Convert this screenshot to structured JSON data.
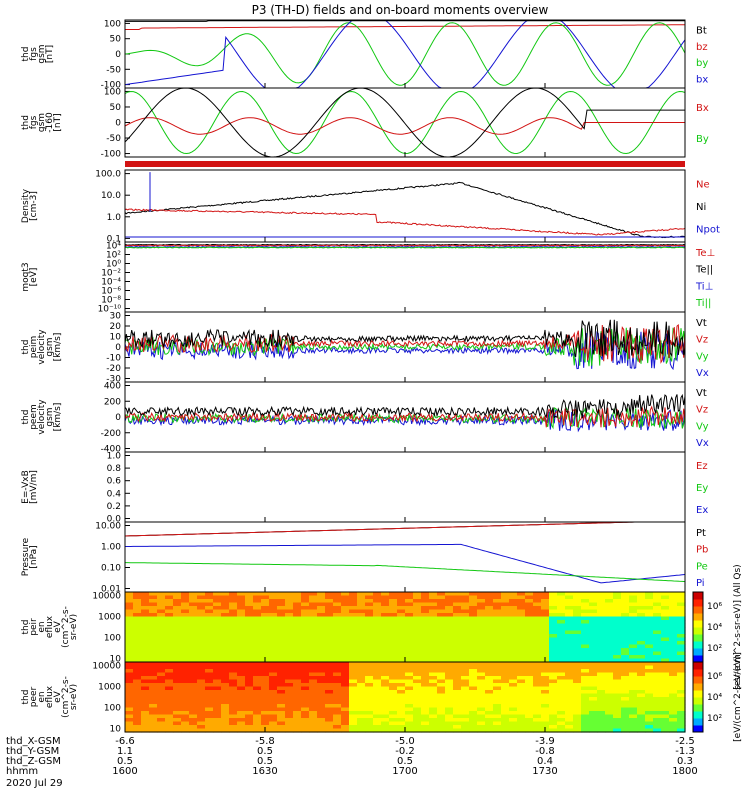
{
  "title": "P3 (TH-D) fields and on-board moments overview",
  "colors": {
    "black": "#000000",
    "red": "#d21414",
    "green": "#12c812",
    "blue": "#1414d2"
  },
  "footer": {
    "row_labels": [
      "thd_X-GSM",
      "thd_Y-GSM",
      "thd_Z-GSM",
      "hhmm",
      "2020 Jul 29"
    ],
    "columns": [
      {
        "x": "-6.6",
        "y": "1.1",
        "z": "0.5",
        "t": "1600"
      },
      {
        "x": "-5.8",
        "y": "0.5",
        "z": "0.5",
        "t": "1630"
      },
      {
        "x": "-5.0",
        "y": "-0.2",
        "z": "0.5",
        "t": "1700"
      },
      {
        "x": "-3.9",
        "y": "-0.8",
        "z": "0.4",
        "t": "1730"
      },
      {
        "x": "-2.5",
        "y": "-1.3",
        "z": "0.3",
        "t": "1800"
      }
    ]
  },
  "chart_data": [
    {
      "type": "line",
      "ylabel": [
        "thd",
        "fgs",
        "gsm",
        "[nT]"
      ],
      "yticks": [
        "100",
        "50",
        "0",
        "-50",
        "-100"
      ],
      "legend": [
        {
          "name": "Bt",
          "color": "black"
        },
        {
          "name": "bz",
          "color": "red"
        },
        {
          "name": "by",
          "color": "green"
        },
        {
          "name": "bx",
          "color": "blue"
        }
      ]
    },
    {
      "type": "line",
      "ylabel": [
        "thd",
        "fgs",
        "gsm",
        "-160",
        "[nT]"
      ],
      "yticks": [
        "100",
        "50",
        "0",
        "-50",
        "-100"
      ],
      "legend": [
        {
          "name": "Bx",
          "color": "red"
        },
        {
          "name": "By",
          "color": "green"
        }
      ]
    },
    {
      "type": "line",
      "ylabel": [
        "Density",
        "[cm-3]"
      ],
      "yticks": [
        "100.0",
        "10.0",
        "1.0",
        "0.1"
      ],
      "legend": [
        {
          "name": "Ne",
          "color": "red"
        },
        {
          "name": "Ni",
          "color": "black"
        },
        {
          "name": "Npot",
          "color": "blue"
        }
      ]
    },
    {
      "type": "line",
      "ylabel": [
        "moqt3",
        "[eV]"
      ],
      "yticks": [
        "10⁴",
        "10²",
        "10⁰",
        "10⁻²",
        "10⁻⁴",
        "10⁻⁶",
        "10⁻⁸",
        "10⁻¹⁰"
      ],
      "legend": [
        {
          "name": "Te⊥",
          "color": "red"
        },
        {
          "name": "Te||",
          "color": "black"
        },
        {
          "name": "Ti⊥",
          "color": "blue"
        },
        {
          "name": "Ti||",
          "color": "green"
        }
      ]
    },
    {
      "type": "line",
      "ylabel": [
        "thd",
        "peim",
        "velocity",
        "gsm",
        "[km/s]"
      ],
      "yticks": [
        "30",
        "20",
        "10",
        "0",
        "-10",
        "-20",
        "-30"
      ],
      "legend": [
        {
          "name": "Vt",
          "color": "black"
        },
        {
          "name": "Vz",
          "color": "red"
        },
        {
          "name": "Vy",
          "color": "green"
        },
        {
          "name": "Vx",
          "color": "blue"
        }
      ]
    },
    {
      "type": "line",
      "ylabel": [
        "thd",
        "peem",
        "velocity",
        "gsm",
        "[km/s]"
      ],
      "yticks": [
        "400",
        "200",
        "0",
        "-200",
        "-400"
      ],
      "legend": [
        {
          "name": "Vt",
          "color": "black"
        },
        {
          "name": "Vz",
          "color": "red"
        },
        {
          "name": "Vy",
          "color": "green"
        },
        {
          "name": "Vx",
          "color": "blue"
        }
      ]
    },
    {
      "type": "line",
      "ylabel": [
        "E=-VxB",
        "[mV/m]"
      ],
      "yticks": [
        "1.0",
        "0.8",
        "0.6",
        "0.4",
        "0.2",
        "0.0"
      ],
      "legend": [
        {
          "name": "Ez",
          "color": "red"
        },
        {
          "name": "Ey",
          "color": "green"
        },
        {
          "name": "Ex",
          "color": "blue"
        }
      ]
    },
    {
      "type": "line",
      "ylabel": [
        "Pressure",
        "[nPa]"
      ],
      "yticks": [
        "10.00",
        "1.00",
        "0.10",
        "0.01"
      ],
      "legend": [
        {
          "name": "Pt",
          "color": "black"
        },
        {
          "name": "Pb",
          "color": "red"
        },
        {
          "name": "Pe",
          "color": "green"
        },
        {
          "name": "Pi",
          "color": "blue"
        }
      ]
    },
    {
      "type": "heatmap",
      "ylabel": [
        "thd",
        "peir",
        "en",
        "eflux",
        "eV",
        "(cm^2-s-",
        "sr-eV)"
      ],
      "yticks": [
        "10000",
        "1000",
        "100",
        "10"
      ],
      "colorbar": {
        "label": "[eV/(cm^2-s-sr-eV)] (All Qs)",
        "ticks": [
          "10⁶",
          "10⁴",
          "10²"
        ]
      }
    },
    {
      "type": "heatmap",
      "ylabel": [
        "thd",
        "peer",
        "en",
        "eflux",
        "eV",
        "(cm^2-s-",
        "sr-eV)"
      ],
      "yticks": [
        "10000",
        "1000",
        "100",
        "10"
      ],
      "colorbar": {
        "label": "[eV/(cm^2-s-sr-eV)]",
        "ticks": [
          "10⁶",
          "10⁴",
          "10²"
        ]
      }
    }
  ]
}
